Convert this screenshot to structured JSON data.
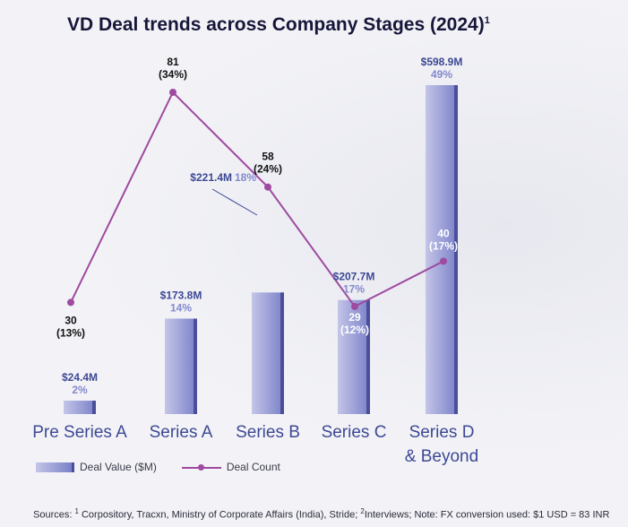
{
  "title": "VD Deal trends across Company Stages (2024)",
  "title_sup": "1",
  "chart_data": {
    "type": "bar+line",
    "categories": [
      "Pre Series A",
      "Series A",
      "Series B",
      "Series C",
      "Series D\n& Beyond"
    ],
    "series": [
      {
        "name": "Deal Value ($M)",
        "kind": "bar",
        "values": [
          24.4,
          173.8,
          221.4,
          207.7,
          598.9
        ],
        "value_labels": [
          "$24.4M",
          "$173.8M",
          "$221.4M",
          "$207.7M",
          "$598.9M"
        ],
        "pct_labels": [
          "2%",
          "14%",
          "18%",
          "17%",
          "49%"
        ]
      },
      {
        "name": "Deal Count",
        "kind": "line",
        "values": [
          30,
          81,
          58,
          29,
          40
        ],
        "pct_labels": [
          "(13%)",
          "(34%)",
          "(24%)",
          "(12%)",
          "(17%)"
        ]
      }
    ],
    "colors": {
      "bar_light": "#c3c5e8",
      "bar_dark": "#7a80c8",
      "bar_edge": "#4b4f9a",
      "value_label": "#3d4894",
      "pct_label": "#8389cc",
      "line": "#9e4aa0",
      "count_label": "#111111",
      "count_label_inside": "#ffffff",
      "category": "#3d4894"
    }
  },
  "legend": {
    "bar": "Deal Value ($M)",
    "line": "Deal Count"
  },
  "footer": {
    "sources_prefix": "Sources: ",
    "sup1": "1",
    "sources_text": " Corpository, Tracxn, Ministry of Corporate Affairs (India), Stride; ",
    "sup2": "2",
    "note_text": "Interviews; Note: FX conversion used: $1 USD = 83 INR"
  }
}
